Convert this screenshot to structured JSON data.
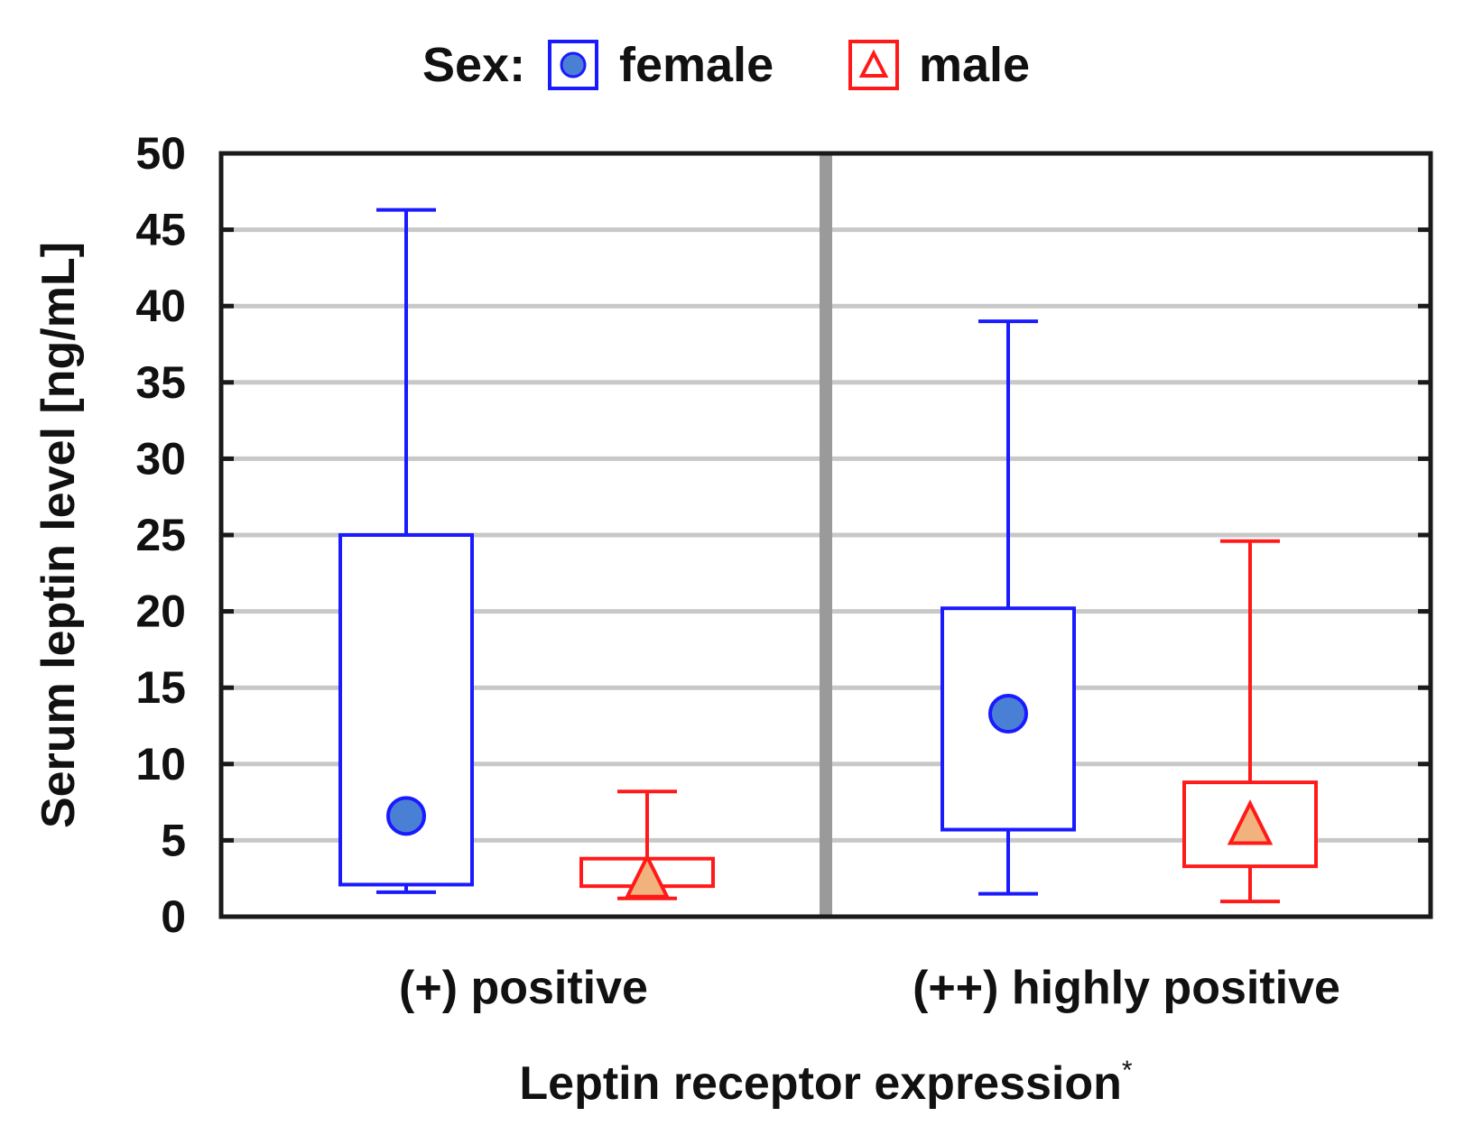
{
  "chart_data": {
    "type": "boxplot",
    "title": "",
    "legend": {
      "title": "Sex:",
      "placement": "top-center",
      "entries": [
        {
          "label": "female",
          "marker": "circle",
          "color": "#1a1aff",
          "fill": "#4a7fd6"
        },
        {
          "label": "male",
          "marker": "triangle",
          "color": "#ff1a1a",
          "fill": "#f2b27e"
        }
      ]
    },
    "xlabel": "Leptin receptor expression",
    "xlabel_suffix": "*",
    "ylabel": "Serum leptin level [ng/mL]",
    "ylim": [
      0,
      50
    ],
    "yticks": [
      0,
      5,
      10,
      15,
      20,
      25,
      30,
      35,
      40,
      45,
      50
    ],
    "grid": true,
    "categories": [
      "(+) positive",
      "(++) highly positive"
    ],
    "series": [
      {
        "name": "female",
        "color": "#1a1aff",
        "marker_fill": "#4a7fd6",
        "boxes": [
          {
            "whisker_low": 1.6,
            "q1": 2.1,
            "median": 6.6,
            "q3": 25.0,
            "whisker_high": 46.3
          },
          {
            "whisker_low": 1.5,
            "q1": 5.7,
            "median": 13.3,
            "q3": 20.2,
            "whisker_high": 39.0
          }
        ]
      },
      {
        "name": "male",
        "color": "#ff1a1a",
        "marker_fill": "#f2b27e",
        "boxes": [
          {
            "whisker_low": 1.2,
            "q1": 2.0,
            "median": 2.5,
            "q3": 3.8,
            "whisker_high": 8.2
          },
          {
            "whisker_low": 1.0,
            "q1": 3.3,
            "median": 6.0,
            "q3": 8.8,
            "whisker_high": 24.6
          }
        ]
      }
    ]
  }
}
